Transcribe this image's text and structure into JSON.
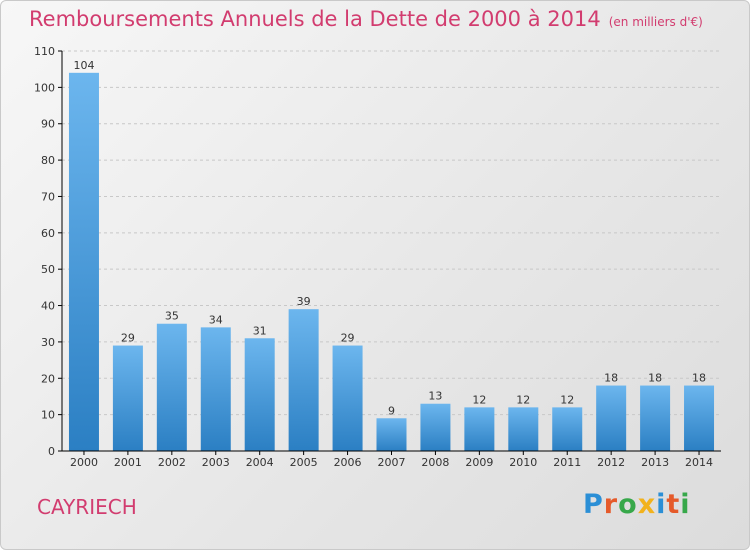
{
  "header": {
    "title": "Remboursements Annuels de la Dette de 2000 à 2014",
    "unit": "(en milliers d'€)"
  },
  "footer": {
    "commune": "CAYRIECH",
    "logo_letters": [
      "P",
      "r",
      "o",
      "x",
      "i",
      "t",
      "i"
    ],
    "logo_colors": [
      "#2b8fd6",
      "#e55a2a",
      "#37a84a",
      "#f2b21c",
      "#2b8fd6",
      "#e55a2a",
      "#37a84a"
    ]
  },
  "colors": {
    "title": "#d23c6f",
    "bar_light": "#6cb6ee",
    "bar_dark": "#2b7fc3",
    "grid": "#c8c8c8",
    "axis": "#000000"
  },
  "chart_data": {
    "type": "bar",
    "categories": [
      "2000",
      "2001",
      "2002",
      "2003",
      "2004",
      "2005",
      "2006",
      "2007",
      "2008",
      "2009",
      "2010",
      "2011",
      "2012",
      "2013",
      "2014"
    ],
    "values": [
      104,
      29,
      35,
      34,
      31,
      39,
      29,
      9,
      13,
      12,
      12,
      12,
      18,
      18,
      18
    ],
    "ylim": [
      0,
      110
    ],
    "yticks": [
      0,
      10,
      20,
      30,
      40,
      50,
      60,
      70,
      80,
      90,
      100,
      110
    ],
    "grid": "horizontal dashed"
  }
}
